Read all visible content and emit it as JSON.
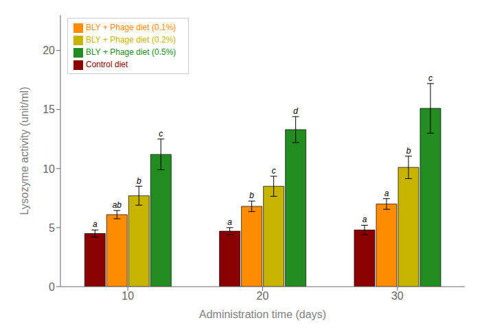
{
  "chart_data": {
    "type": "bar",
    "categories": [
      "10",
      "20",
      "30"
    ],
    "series": [
      {
        "name": "Control diet",
        "color": "#8B0000",
        "values": [
          4.5,
          4.7,
          4.8
        ],
        "errors": [
          0.3,
          0.3,
          0.4
        ],
        "letters": [
          "a",
          "a",
          "a"
        ]
      },
      {
        "name": "BLY + Phage diet (0.1%)",
        "color": "#FF8C00",
        "values": [
          6.1,
          6.8,
          7.0
        ],
        "errors": [
          0.35,
          0.45,
          0.45
        ],
        "letters": [
          "ab",
          "b",
          "a"
        ]
      },
      {
        "name": "BLY + Phage diet (0.2%)",
        "color": "#C8B400",
        "values": [
          7.7,
          8.5,
          10.1
        ],
        "errors": [
          0.8,
          0.85,
          0.95
        ],
        "letters": [
          "b",
          "c",
          "b"
        ]
      },
      {
        "name": "BLY + Phage diet (0.5%)",
        "color": "#228B22",
        "values": [
          11.2,
          13.3,
          15.1
        ],
        "errors": [
          1.3,
          1.1,
          2.1
        ],
        "letters": [
          "c",
          "d",
          "c"
        ]
      }
    ],
    "xlabel": "Administration time (days)",
    "ylabel": "Lysozyme activity (unit/ml)",
    "ylim": [
      0,
      23
    ],
    "yticks": [
      0,
      5,
      10,
      15,
      20
    ],
    "grid": false,
    "legend": "upper left"
  }
}
